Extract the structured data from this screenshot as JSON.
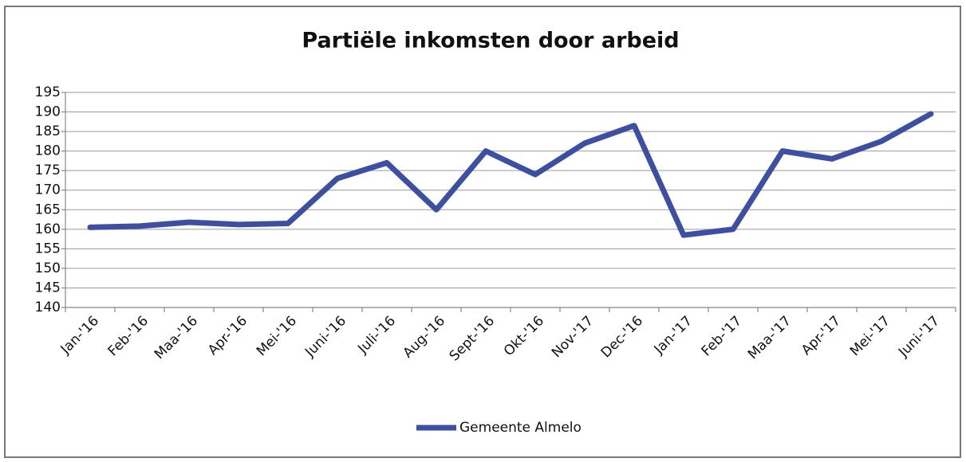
{
  "chart_data": {
    "type": "line",
    "title": "Partiële inkomsten door arbeid",
    "categories": [
      "Jan-'16",
      "Feb-'16",
      "Maa-'16",
      "Apr-'16",
      "Mei-'16",
      "Juni-'16",
      "Juli-'16",
      "Aug-'16",
      "Sept-'16",
      "Okt-'16",
      "Nov-'17",
      "Dec-'16",
      "Jan-'17",
      "Feb-'17",
      "Maa-'17",
      "Apr-'17",
      "Mei-'17",
      "Juni-'17"
    ],
    "series": [
      {
        "name": "Gemeente Almelo",
        "color": "#3d4fa3",
        "values": [
          160.5,
          160.8,
          161.8,
          161.2,
          161.5,
          173,
          177,
          165,
          180,
          174,
          182,
          186.5,
          158.5,
          160,
          180,
          178,
          182.5,
          189.5
        ]
      }
    ],
    "ylim": [
      140,
      195
    ],
    "yticks": [
      140,
      145,
      150,
      155,
      160,
      165,
      170,
      175,
      180,
      185,
      190,
      195
    ],
    "grid": true,
    "legend": "bottom"
  }
}
